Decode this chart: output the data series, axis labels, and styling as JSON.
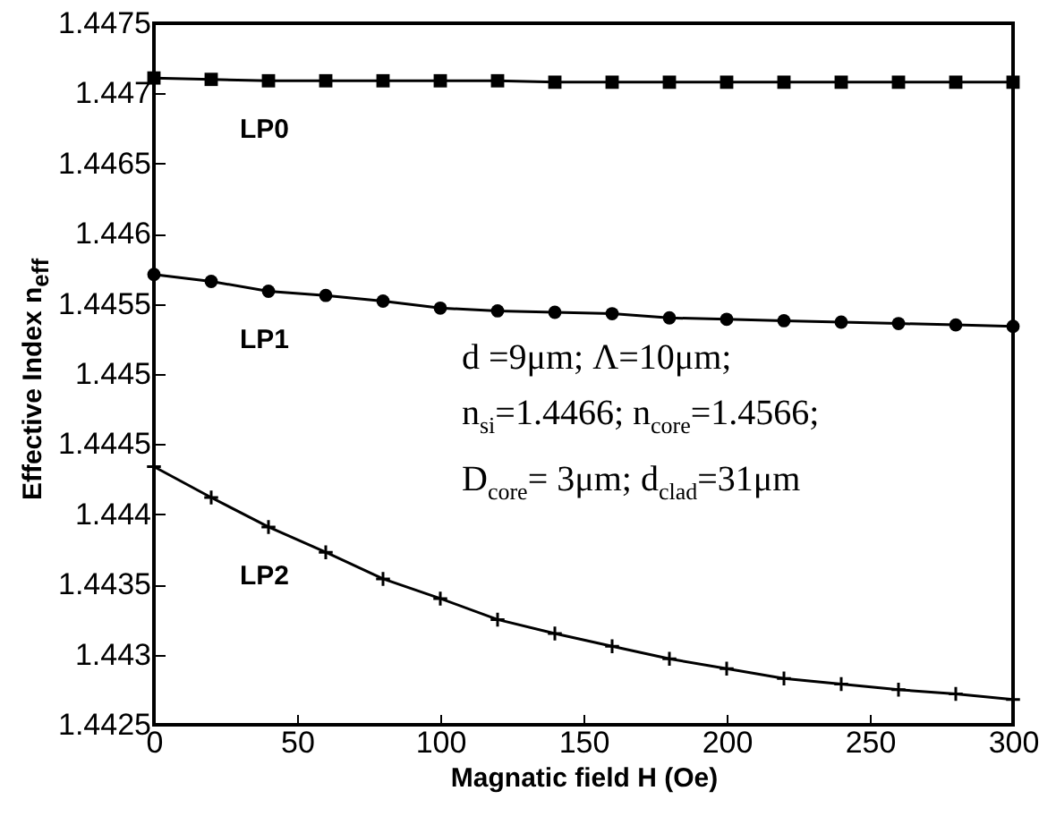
{
  "chart_data": {
    "type": "line",
    "xlabel": "Magnatic field  H (Oe)",
    "ylabel": "Effective Index n$_{eff}$",
    "x": [
      0,
      20,
      40,
      60,
      80,
      100,
      120,
      140,
      160,
      180,
      200,
      220,
      240,
      260,
      280,
      300
    ],
    "series": [
      {
        "name": "LP0",
        "color": "#000000",
        "marker": "square",
        "values": [
          1.44711,
          1.4471,
          1.44709,
          1.44709,
          1.44709,
          1.44709,
          1.44709,
          1.44708,
          1.44708,
          1.44708,
          1.44708,
          1.44708,
          1.44708,
          1.44708,
          1.44708,
          1.44708
        ]
      },
      {
        "name": "LP1",
        "color": "#000000",
        "marker": "circle",
        "values": [
          1.44571,
          1.44566,
          1.44559,
          1.44556,
          1.44552,
          1.44547,
          1.44545,
          1.44544,
          1.44543,
          1.4454,
          1.44539,
          1.44538,
          1.44537,
          1.44536,
          1.44535,
          1.44534
        ]
      },
      {
        "name": "LP2",
        "color": "#000000",
        "marker": "cross",
        "values": [
          1.44434,
          1.44412,
          1.44391,
          1.44373,
          1.44354,
          1.4434,
          1.44325,
          1.44315,
          1.44306,
          1.44297,
          1.4429,
          1.44283,
          1.44279,
          1.44275,
          1.44272,
          1.44268
        ]
      }
    ],
    "annotations": [
      "d =9μm; Λ=10μm;",
      "n$_{si}$=1.4466; n$_{core}$=1.4566;",
      "D$_{core}$= 3μm; d$_{clad}$=31μm"
    ],
    "xlim": [
      0,
      300
    ],
    "xticks": [
      0,
      50,
      100,
      150,
      200,
      250,
      300
    ],
    "ylim": [
      1.4425,
      1.4475
    ],
    "yticks": [
      1.4425,
      1.443,
      1.4435,
      1.444,
      1.4445,
      1.445,
      1.4455,
      1.446,
      1.4465,
      1.447,
      1.4475
    ],
    "grid": false,
    "line_style": "solid"
  }
}
